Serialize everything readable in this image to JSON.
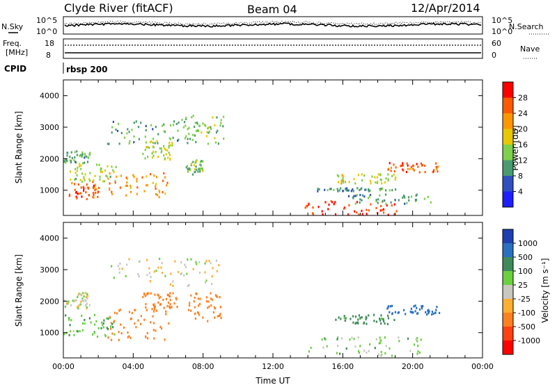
{
  "header": {
    "station": "Clyde River (fitACF)",
    "beam": "Beam 04",
    "date": "12/Apr/2014"
  },
  "strip_nsky": {
    "left_label": "N.Sky",
    "right_label": "N.Search",
    "ticks_left": [
      "10^5",
      "10^0"
    ],
    "ticks_right": [
      "10^5",
      "10^0"
    ]
  },
  "strip_freq": {
    "left_label_1": "Freq.",
    "left_label_2": "[MHz]",
    "right_label": "Nave",
    "ticks_left": [
      "18",
      "8"
    ],
    "ticks_right": [
      "60",
      "0"
    ]
  },
  "strip_cpid": {
    "left_label": "CPID",
    "value": "rbsp 200"
  },
  "colorbar_power": {
    "label": "Power [dB]",
    "ticks": [
      "28",
      "24",
      "20",
      "16",
      "12",
      "8",
      "4"
    ],
    "colors": [
      "#ff0000",
      "#ff5a00",
      "#ff9600",
      "#e8c800",
      "#7fd04a",
      "#4a9a70",
      "#3050c0",
      "#1e1eff"
    ]
  },
  "colorbar_velocity": {
    "label": "Velocity [m s⁻¹]",
    "ticks": [
      "1000",
      "500",
      "100",
      "25",
      "-25",
      "-100",
      "-500",
      "-1000"
    ],
    "colors": [
      "#1e3fb0",
      "#2a70c0",
      "#3f8a5a",
      "#6ad040",
      "#c8c8c0",
      "#ffb030",
      "#ff8020",
      "#ff4010",
      "#ff0000"
    ]
  },
  "chart_data": [
    {
      "type": "heatmap",
      "name": "power",
      "ylabel": "Slant Range [km]",
      "ylim": [
        200,
        4500
      ],
      "yticks": [
        "1000",
        "2000",
        "3000",
        "4000"
      ],
      "xlim": [
        "00:00",
        "24:00"
      ],
      "blobs": [
        {
          "t0": 0.3,
          "t1": 2.0,
          "r0": 700,
          "r1": 1300,
          "level": 26
        },
        {
          "t0": 0.0,
          "t1": 3.0,
          "r0": 1300,
          "r1": 1900,
          "level": 14
        },
        {
          "t0": 0.0,
          "t1": 1.5,
          "r0": 1900,
          "r1": 2300,
          "level": 10
        },
        {
          "t0": 2.5,
          "t1": 6.0,
          "r0": 800,
          "r1": 1600,
          "level": 22
        },
        {
          "t0": 4.5,
          "t1": 6.2,
          "r0": 2000,
          "r1": 2600,
          "level": 14
        },
        {
          "t0": 2.5,
          "t1": 8.0,
          "r0": 2500,
          "r1": 3300,
          "level": 10
        },
        {
          "t0": 6.8,
          "t1": 9.2,
          "r0": 2500,
          "r1": 3400,
          "level": 12
        },
        {
          "t0": 7.0,
          "t1": 8.0,
          "r0": 1500,
          "r1": 2000,
          "level": 12
        },
        {
          "t0": 13.8,
          "t1": 19.2,
          "r0": 250,
          "r1": 700,
          "level": 28
        },
        {
          "t0": 16.0,
          "t1": 21.0,
          "r0": 600,
          "r1": 900,
          "level": 9
        },
        {
          "t0": 14.5,
          "t1": 19.0,
          "r0": 1000,
          "r1": 1100,
          "level": 8
        },
        {
          "t0": 15.5,
          "t1": 19.0,
          "r0": 1250,
          "r1": 1550,
          "level": 16
        },
        {
          "t0": 18.5,
          "t1": 21.5,
          "r0": 1600,
          "r1": 1900,
          "level": 26
        }
      ]
    },
    {
      "type": "heatmap",
      "name": "velocity",
      "ylabel": "Slant Range [km]",
      "xlabel": "Time UT",
      "ylim": [
        200,
        4500
      ],
      "yticks": [
        "1000",
        "2000",
        "3000",
        "4000"
      ],
      "xlim": [
        "00:00",
        "24:00"
      ],
      "xticks": [
        "00:00",
        "04:00",
        "08:00",
        "12:00",
        "16:00",
        "20:00",
        "00:00"
      ],
      "blobs": [
        {
          "t0": 0.0,
          "t1": 1.5,
          "r0": 1800,
          "r1": 2300,
          "velocity": 0
        },
        {
          "t0": 0.0,
          "t1": 3.2,
          "r0": 900,
          "r1": 1600,
          "velocity": 80
        },
        {
          "t0": 2.5,
          "t1": 6.0,
          "r0": 800,
          "r1": 1800,
          "velocity": -200
        },
        {
          "t0": 4.5,
          "t1": 6.5,
          "r0": 1800,
          "r1": 2300,
          "velocity": -200
        },
        {
          "t0": 7.0,
          "t1": 9.0,
          "r0": 1400,
          "r1": 2300,
          "velocity": -250
        },
        {
          "t0": 2.5,
          "t1": 9.0,
          "r0": 2500,
          "r1": 3400,
          "velocity": 0
        },
        {
          "t0": 14.0,
          "t1": 20.5,
          "r0": 300,
          "r1": 900,
          "velocity": 60
        },
        {
          "t0": 15.5,
          "t1": 19.0,
          "r0": 1300,
          "r1": 1600,
          "velocity": 150
        },
        {
          "t0": 18.5,
          "t1": 21.5,
          "r0": 1600,
          "r1": 1900,
          "velocity": 800
        }
      ]
    }
  ]
}
